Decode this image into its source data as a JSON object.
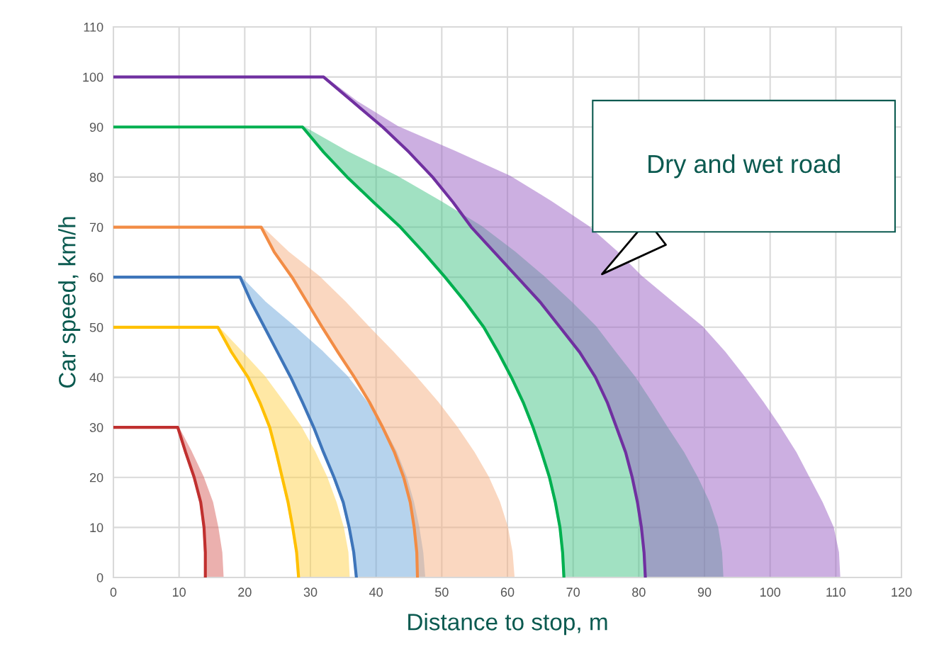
{
  "chart_data": {
    "type": "line",
    "xlabel": "Distance to stop, m",
    "ylabel": "Car speed, km/h",
    "xlim": [
      0,
      120
    ],
    "xticks": [
      0,
      10,
      20,
      30,
      40,
      50,
      60,
      70,
      80,
      90,
      100,
      110,
      120
    ],
    "ylim": [
      0,
      110
    ],
    "yticks": [
      0,
      10,
      20,
      30,
      40,
      50,
      60,
      70,
      80,
      90,
      100,
      110
    ],
    "grid": true,
    "annotations": [
      "Dry and wet road"
    ],
    "series": [
      {
        "color": "#c0302f",
        "x": [
          0,
          9.8,
          11,
          12.3,
          13.3,
          13.8,
          14,
          14
        ],
        "values": [
          30,
          30,
          25,
          20,
          15,
          10,
          5,
          0
        ]
      },
      {
        "type": "area",
        "color": "#d9645f",
        "x": [
          9.8,
          11.8,
          13.6,
          15,
          15.8,
          16.4,
          16.6,
          14,
          14,
          13.8,
          13.3,
          12.3,
          11
        ],
        "values": [
          30,
          25,
          20,
          15,
          10,
          5,
          0,
          0,
          5,
          10,
          15,
          20,
          25
        ]
      },
      {
        "color": "#ffc000",
        "x": [
          0,
          15.9,
          18,
          20.5,
          22.3,
          23.8,
          24.8,
          25.7,
          26.6,
          27.3,
          27.9,
          28.2
        ],
        "values": [
          50,
          50,
          45,
          40,
          35,
          30,
          25,
          20,
          15,
          10,
          5,
          0
        ]
      },
      {
        "type": "area",
        "color": "#ffd34d",
        "x": [
          15.9,
          19.5,
          23,
          25.8,
          28.5,
          30.6,
          32.4,
          33.8,
          34.9,
          35.6,
          35.8,
          28.2,
          27.9,
          27.3,
          26.6,
          25.7,
          24.8,
          23.8,
          22.3,
          20.5,
          18
        ],
        "values": [
          50,
          45,
          40,
          35,
          30,
          25,
          20,
          15,
          10,
          5,
          0,
          0,
          5,
          10,
          15,
          20,
          25,
          30,
          35,
          40,
          45
        ]
      },
      {
        "color": "#3e75ba",
        "x": [
          0,
          19.3,
          21,
          23,
          25,
          27,
          28.8,
          30.5,
          32,
          33.6,
          35,
          35.9,
          36.6,
          37
        ],
        "values": [
          60,
          60,
          55,
          50,
          45,
          40,
          35,
          30,
          25,
          20,
          15,
          10,
          5,
          0
        ]
      },
      {
        "type": "area",
        "color": "#6fa8dc",
        "x": [
          19.3,
          23,
          27.5,
          31.8,
          35.6,
          38.5,
          41,
          43,
          44.5,
          45.6,
          46.4,
          47,
          47.3,
          37,
          36.6,
          35.9,
          35,
          33.6,
          32,
          30.5,
          28.8,
          27,
          25,
          23,
          21
        ],
        "values": [
          60,
          55,
          50,
          45,
          40,
          35,
          30,
          25,
          20,
          15,
          10,
          5,
          0,
          0,
          5,
          10,
          15,
          20,
          25,
          30,
          35,
          40,
          45,
          50,
          55
        ]
      },
      {
        "color": "#f28c45",
        "x": [
          0,
          22.5,
          24.5,
          27.2,
          29.5,
          31.8,
          34.2,
          36.7,
          39,
          41,
          42.8,
          44.2,
          45.2,
          45.8,
          46.2,
          46.3
        ],
        "values": [
          70,
          70,
          65,
          60,
          55,
          50,
          45,
          40,
          35,
          30,
          25,
          20,
          15,
          10,
          5,
          0
        ]
      },
      {
        "type": "area",
        "color": "#f6b183",
        "x": [
          22.5,
          26.5,
          31.3,
          35.2,
          38.8,
          42.5,
          46,
          49.3,
          52.2,
          54.8,
          57,
          58.7,
          59.9,
          60.6,
          60.9,
          46.3,
          46.2,
          45.8,
          45.2,
          44.2,
          42.8,
          41,
          39,
          36.7,
          34.2,
          31.8,
          29.5,
          27.2,
          24.5
        ],
        "values": [
          70,
          65,
          60,
          55,
          50,
          45,
          40,
          35,
          30,
          25,
          20,
          15,
          10,
          5,
          0,
          0,
          5,
          10,
          15,
          20,
          25,
          30,
          35,
          40,
          45,
          50,
          55,
          60,
          65
        ]
      },
      {
        "color": "#00b050",
        "x": [
          0,
          28.8,
          32,
          35.6,
          39.6,
          43.7,
          47.2,
          50.5,
          53.6,
          56.4,
          58.6,
          60.6,
          62.4,
          63.9,
          65.2,
          66.4,
          67.3,
          68,
          68.4,
          68.6
        ],
        "values": [
          90,
          90,
          85,
          80,
          75,
          70,
          65,
          60,
          55,
          50,
          45,
          40,
          35,
          30,
          25,
          20,
          15,
          10,
          5,
          0
        ]
      },
      {
        "type": "area",
        "color": "#45c487",
        "x": [
          28.8,
          35.5,
          43.2,
          49.8,
          56,
          61,
          65.5,
          69.6,
          73.4,
          76.3,
          79.3,
          81.8,
          84.2,
          86.7,
          88.8,
          90.6,
          91.9,
          92.5,
          92.7,
          68.6,
          68.4,
          68,
          67.3,
          66.4,
          65.2,
          63.9,
          62.4,
          60.6,
          58.6,
          56.4,
          53.6,
          50.5,
          47.2,
          43.7,
          39.6,
          35.6,
          32
        ],
        "values": [
          90,
          85,
          80,
          75,
          70,
          65,
          60,
          55,
          50,
          45,
          40,
          35,
          30,
          25,
          20,
          15,
          10,
          5,
          0,
          0,
          5,
          10,
          15,
          20,
          25,
          30,
          35,
          40,
          45,
          50,
          55,
          60,
          65,
          70,
          75,
          80,
          85
        ]
      },
      {
        "color": "#7030a0",
        "x": [
          0,
          32,
          36.5,
          41,
          45,
          48.6,
          51.7,
          54.5,
          58,
          61.5,
          65,
          68,
          71,
          73.4,
          75.2,
          76.6,
          78,
          79,
          79.8,
          80.4,
          80.8,
          81
        ],
        "values": [
          100,
          100,
          95,
          90,
          85,
          80,
          75,
          70,
          65,
          60,
          55,
          50,
          45,
          40,
          35,
          30,
          25,
          20,
          15,
          10,
          5,
          0
        ]
      },
      {
        "type": "area",
        "color": "#9b62c4",
        "x": [
          32,
          37,
          43.2,
          52,
          60.4,
          66.6,
          72.3,
          76.6,
          80.4,
          85,
          89.6,
          93,
          96,
          98.8,
          101.4,
          103.8,
          105.8,
          107.8,
          109.5,
          110.3,
          110.5,
          81,
          80.8,
          80.4,
          79.8,
          79,
          78,
          76.6,
          75.2,
          73.4,
          71,
          68,
          65,
          61.5,
          58,
          54.5,
          51.7,
          48.6,
          45,
          41,
          36.5
        ],
        "values": [
          100,
          95,
          90,
          85,
          80,
          75,
          70,
          65,
          60,
          55,
          50,
          45,
          40,
          35,
          30,
          25,
          20,
          15,
          10,
          5,
          0,
          0,
          5,
          10,
          15,
          20,
          25,
          30,
          35,
          40,
          45,
          50,
          55,
          60,
          65,
          70,
          75,
          80,
          85,
          90,
          95
        ]
      }
    ]
  }
}
